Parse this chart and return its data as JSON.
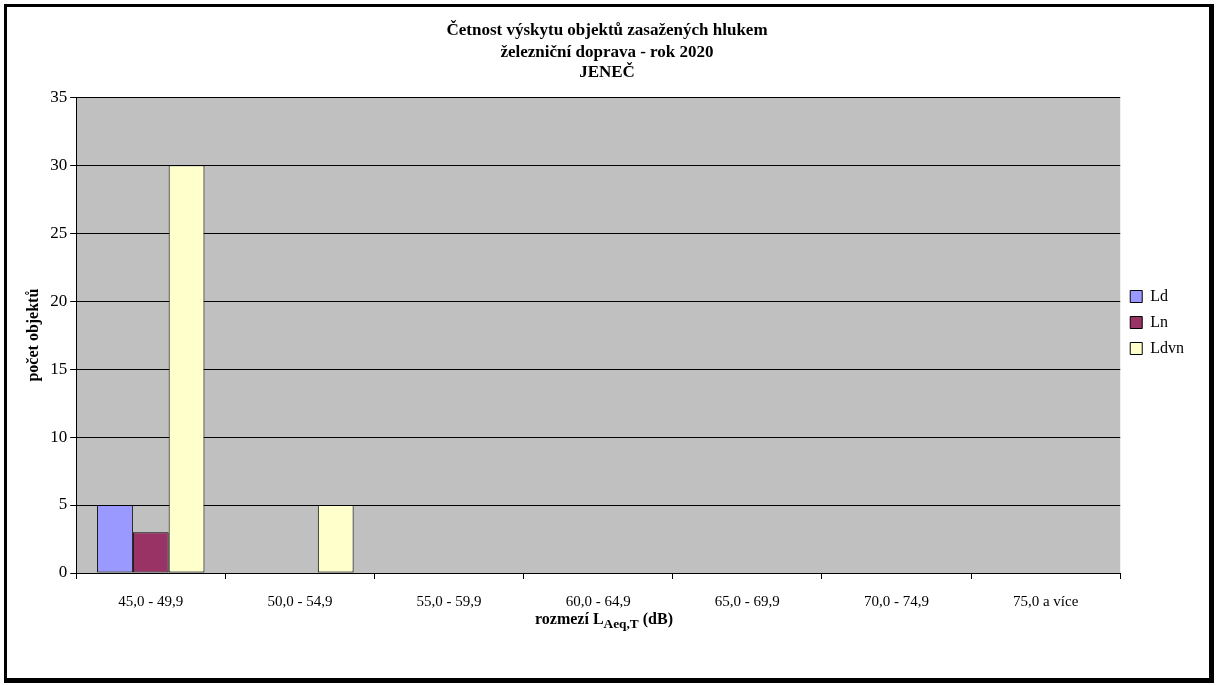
{
  "chart_data": {
    "type": "bar",
    "title": "Četnost výskytu objektů zasažených hlukem",
    "subtitle": "železniční doprava - rok 2020\nJENEČ",
    "xlabel": "rozmezí L$_{Aeq,T}$ (dB)",
    "ylabel": "počet objektů",
    "categories": [
      "45,0 - 49,9",
      "50,0 - 54,9",
      "55,0 - 59,9",
      "60,0 - 64,9",
      "65,0 - 69,9",
      "70,0 - 74,9",
      "75,0 a více"
    ],
    "series": [
      {
        "name": "Ld",
        "color": "#9999ff",
        "values": [
          5,
          0,
          0,
          0,
          0,
          0,
          0
        ]
      },
      {
        "name": "Ln",
        "color": "#993366",
        "values": [
          3,
          0,
          0,
          0,
          0,
          0,
          0
        ]
      },
      {
        "name": "Ldvn",
        "color": "#ffffcc",
        "values": [
          30,
          5,
          0,
          0,
          0,
          0,
          0
        ]
      }
    ],
    "ylim": [
      0,
      35
    ],
    "yticks": [
      0,
      5,
      10,
      15,
      20,
      25,
      30,
      35
    ],
    "grid": "y",
    "legend": "right"
  }
}
